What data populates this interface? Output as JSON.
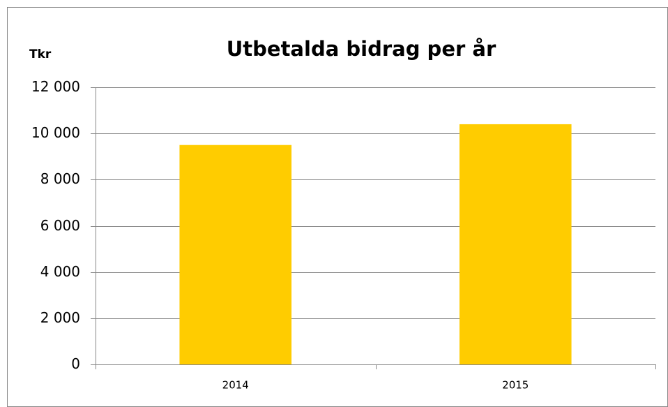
{
  "chart_data": {
    "type": "bar",
    "title": "Utbetalda bidrag per år",
    "y_label": "Tkr",
    "categories": [
      "2014",
      "2015"
    ],
    "values": [
      9500,
      10400
    ],
    "color": "#ffcc00",
    "ylim": [
      0,
      12000
    ],
    "yticks": [
      0,
      {
        "value": 2000,
        "label": "2 000"
      },
      {
        "value": 4000,
        "label": "4 000"
      },
      {
        "value": 6000,
        "label": "6 000"
      },
      {
        "value": 8000,
        "label": "8 000"
      },
      {
        "value": 10000,
        "label": "10 000"
      },
      {
        "value": 12000,
        "label": "12 000"
      }
    ],
    "grid": true
  }
}
